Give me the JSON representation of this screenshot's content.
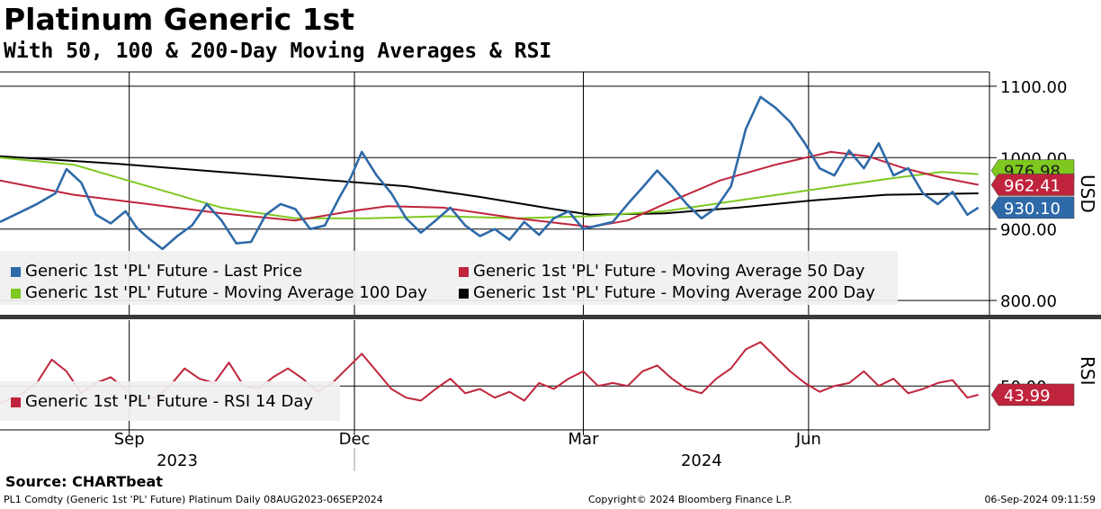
{
  "title": "Platinum Generic 1st",
  "subtitle": "With 50, 100 & 200-Day Moving Averages & RSI",
  "source": "Source: CHARTbeat",
  "footer": {
    "left": "PL1 Comdty (Generic 1st 'PL' Future) Platinum  Daily 08AUG2023-06SEP2024",
    "center": "Copyright© 2024 Bloomberg Finance L.P.",
    "right": "06-Sep-2024 09:11:59"
  },
  "colors": {
    "last_price": "#2f6aa8",
    "ma50": "#c0243c",
    "ma100": "#7ec820",
    "ma200": "#000000",
    "rsi": "#c0243c"
  },
  "chart_data": [
    {
      "type": "line",
      "panel": "price",
      "unit_label": "USD",
      "ylim": [
        780,
        1120
      ],
      "yticks": [
        "1100.00",
        "1000.00",
        "900.00",
        "800.00"
      ],
      "ytick_values": [
        1100,
        1000,
        900,
        800
      ],
      "xlim": [
        0,
        268
      ],
      "grid": true,
      "legend_placement": "bottom-left",
      "series": [
        {
          "name": "Generic 1st 'PL' Future - Last Price",
          "key": "last_price",
          "last_label": "930.10",
          "x": [
            0,
            6,
            10,
            15,
            18,
            22,
            26,
            30,
            34,
            37,
            40,
            44,
            48,
            52,
            56,
            60,
            64,
            68,
            72,
            76,
            80,
            84,
            88,
            92,
            95,
            98,
            102,
            106,
            110,
            114,
            118,
            122,
            126,
            130,
            134,
            138,
            142,
            146,
            150,
            154,
            158,
            162,
            166,
            170,
            174,
            178,
            182,
            186,
            190,
            194,
            198,
            202,
            206,
            210,
            214,
            218,
            222,
            226,
            230,
            234,
            238,
            242,
            246,
            250,
            254,
            258,
            262,
            265
          ],
          "values": [
            910,
            925,
            935,
            950,
            984,
            965,
            920,
            908,
            925,
            902,
            888,
            872,
            890,
            905,
            935,
            912,
            880,
            882,
            920,
            935,
            928,
            900,
            905,
            945,
            972,
            1008,
            975,
            950,
            915,
            895,
            912,
            930,
            905,
            890,
            900,
            885,
            910,
            892,
            915,
            925,
            900,
            905,
            910,
            935,
            958,
            982,
            960,
            935,
            915,
            930,
            960,
            1040,
            1085,
            1070,
            1050,
            1020,
            985,
            975,
            1010,
            985,
            1020,
            975,
            985,
            950,
            935,
            952,
            920,
            930
          ]
        },
        {
          "name": "Generic 1st 'PL' Future - Moving Average 50 Day",
          "key": "ma50",
          "last_label": "962.41",
          "x": [
            0,
            20,
            40,
            60,
            80,
            95,
            105,
            120,
            140,
            160,
            170,
            180,
            195,
            210,
            225,
            235,
            245,
            255,
            265
          ],
          "values": [
            968,
            948,
            935,
            922,
            912,
            925,
            932,
            930,
            915,
            903,
            912,
            935,
            968,
            990,
            1008,
            1002,
            985,
            972,
            962
          ]
        },
        {
          "name": "Generic 1st 'PL' Future - Moving Average 100 Day",
          "key": "ma100",
          "last_label": "976.98",
          "x": [
            0,
            20,
            40,
            60,
            80,
            100,
            120,
            140,
            160,
            180,
            200,
            220,
            240,
            255,
            265
          ],
          "values": [
            1000,
            990,
            960,
            930,
            915,
            915,
            918,
            915,
            918,
            925,
            940,
            955,
            970,
            980,
            977
          ]
        },
        {
          "name": "Generic 1st 'PL' Future - Moving Average 200 Day",
          "key": "ma200",
          "last_label": "",
          "x": [
            0,
            30,
            60,
            90,
            110,
            130,
            150,
            160,
            180,
            200,
            220,
            240,
            265
          ],
          "values": [
            1002,
            992,
            980,
            968,
            960,
            945,
            928,
            920,
            922,
            930,
            940,
            948,
            950
          ]
        }
      ]
    },
    {
      "type": "line",
      "panel": "rsi",
      "unit_label": "RSI",
      "ylim": [
        20,
        95
      ],
      "yticks": [
        "50.00"
      ],
      "ytick_values": [
        50
      ],
      "xlim": [
        0,
        268
      ],
      "grid": true,
      "legend_placement": "bottom-left",
      "series": [
        {
          "name": "Generic 1st 'PL' Future - RSI 14 Day",
          "key": "rsi",
          "last_label": "43.99",
          "x": [
            0,
            6,
            10,
            14,
            18,
            22,
            26,
            30,
            34,
            38,
            42,
            46,
            50,
            54,
            58,
            62,
            66,
            70,
            74,
            78,
            82,
            86,
            90,
            94,
            98,
            102,
            106,
            110,
            114,
            118,
            122,
            126,
            130,
            134,
            138,
            142,
            146,
            150,
            154,
            158,
            162,
            166,
            170,
            174,
            178,
            182,
            186,
            190,
            194,
            198,
            202,
            206,
            210,
            214,
            218,
            222,
            226,
            230,
            234,
            238,
            242,
            246,
            250,
            254,
            258,
            262,
            265
          ],
          "values": [
            38,
            45,
            52,
            68,
            60,
            45,
            52,
            56,
            48,
            40,
            42,
            50,
            62,
            55,
            52,
            66,
            50,
            48,
            56,
            62,
            55,
            46,
            52,
            62,
            72,
            60,
            48,
            42,
            40,
            48,
            55,
            45,
            48,
            42,
            46,
            40,
            52,
            48,
            55,
            60,
            50,
            52,
            50,
            60,
            64,
            55,
            48,
            45,
            55,
            62,
            75,
            80,
            70,
            60,
            52,
            46,
            50,
            52,
            60,
            50,
            55,
            45,
            48,
            52,
            54,
            42,
            44
          ]
        }
      ]
    }
  ],
  "x_axis": {
    "month_ticks": [
      {
        "label": "Sep",
        "x": 35
      },
      {
        "label": "Dec",
        "x": 96
      },
      {
        "label": "Mar",
        "x": 158
      },
      {
        "label": "Jun",
        "x": 219
      }
    ],
    "year_labels": [
      {
        "label": "2023",
        "x": 48
      },
      {
        "label": "2024",
        "x": 190
      }
    ],
    "year_divider_x": 96
  }
}
